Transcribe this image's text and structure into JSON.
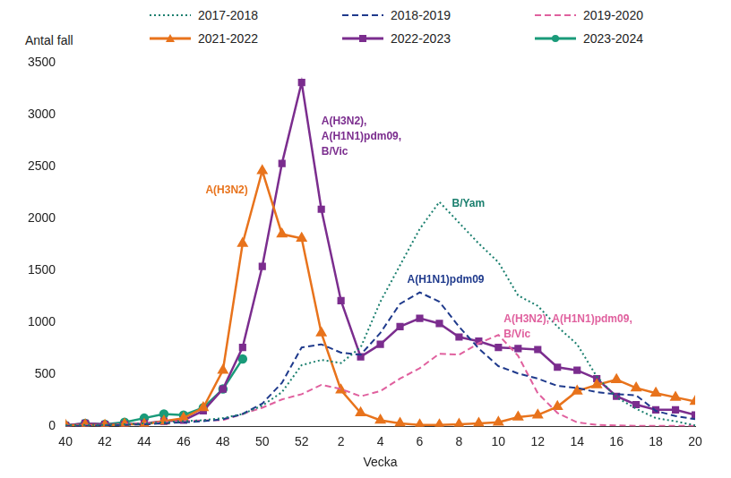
{
  "chart_data": {
    "type": "line",
    "x_label": "Vecka",
    "y_label": "Antal fall",
    "categories": [
      40,
      null,
      42,
      null,
      44,
      null,
      46,
      null,
      48,
      null,
      50,
      null,
      52,
      null,
      2,
      null,
      4,
      null,
      6,
      null,
      8,
      null,
      10,
      null,
      12,
      null,
      14,
      null,
      16,
      null,
      18,
      null,
      20
    ],
    "series": [
      {
        "name": "2017-2018",
        "color": "#1a7f6e",
        "line_style": "dotted",
        "marker": "none",
        "values": [
          10,
          15,
          15,
          20,
          30,
          40,
          50,
          60,
          80,
          120,
          200,
          330,
          590,
          640,
          610,
          760,
          1200,
          1550,
          1900,
          2160,
          1960,
          1760,
          1580,
          1260,
          1160,
          960,
          790,
          480,
          280,
          170,
          80,
          50,
          10
        ]
      },
      {
        "name": "2018-2019",
        "color": "#1f3a8c",
        "line_style": "dashed",
        "marker": "none",
        "values": [
          5,
          5,
          10,
          15,
          20,
          30,
          40,
          50,
          70,
          120,
          220,
          420,
          760,
          790,
          710,
          690,
          900,
          1180,
          1290,
          1200,
          960,
          750,
          580,
          510,
          460,
          390,
          370,
          330,
          310,
          300,
          150,
          100,
          70
        ]
      },
      {
        "name": "2019-2020",
        "color": "#e0609e",
        "line_style": "dashed",
        "marker": "none",
        "values": [
          5,
          10,
          10,
          20,
          30,
          40,
          50,
          60,
          60,
          120,
          180,
          260,
          310,
          400,
          360,
          290,
          340,
          460,
          560,
          700,
          690,
          800,
          880,
          680,
          320,
          130,
          40,
          15,
          10,
          5,
          5,
          5,
          5
        ]
      },
      {
        "name": "2021-2022",
        "color": "#e8731c",
        "line_style": "solid",
        "marker": "triangle",
        "values": [
          10,
          15,
          10,
          20,
          20,
          50,
          80,
          180,
          540,
          1760,
          2460,
          1850,
          1810,
          900,
          350,
          130,
          60,
          30,
          15,
          15,
          20,
          30,
          40,
          90,
          110,
          190,
          340,
          400,
          450,
          370,
          320,
          280,
          240
        ]
      },
      {
        "name": "2022-2023",
        "color": "#7b2d8e",
        "line_style": "solid",
        "marker": "square",
        "values": [
          10,
          30,
          20,
          20,
          30,
          50,
          60,
          150,
          360,
          760,
          1540,
          2530,
          3310,
          2090,
          1210,
          670,
          790,
          960,
          1040,
          990,
          860,
          820,
          760,
          750,
          740,
          570,
          540,
          460,
          290,
          210,
          160,
          160,
          110
        ]
      },
      {
        "name": "2023-2024",
        "color": "#1a9b7a",
        "line_style": "solid",
        "marker": "circle",
        "values": [
          10,
          30,
          20,
          40,
          80,
          120,
          110,
          180,
          360,
          650,
          null,
          null,
          null,
          null,
          null,
          null,
          null,
          null,
          null,
          null,
          null,
          null,
          null,
          null,
          null,
          null,
          null,
          null,
          null,
          null,
          null,
          null,
          null
        ]
      }
    ],
    "ylim": [
      0,
      3500
    ],
    "yticks": [
      0,
      500,
      1000,
      1500,
      2000,
      2500,
      3000,
      3500
    ],
    "grid": false,
    "legend": "top",
    "annotations": [
      {
        "text": [
          "A(H3N2)"
        ],
        "series": "2021-2022",
        "color": "#e8731c"
      },
      {
        "text": [
          "A(H3N2),",
          "A(H1N1)pdm09,",
          "B/Vic"
        ],
        "series": "2022-2023",
        "color": "#7b2d8e"
      },
      {
        "text": [
          "B/Yam"
        ],
        "series": "2017-2018",
        "color": "#1a7f6e"
      },
      {
        "text": [
          "A(H1N1)pdm09"
        ],
        "series": "2018-2019",
        "color": "#1f3a8c"
      },
      {
        "text": [
          "A(H3N2), A(H1N1)pdm09,",
          "B/Vic"
        ],
        "series": "2019-2020",
        "color": "#e0609e"
      }
    ]
  }
}
